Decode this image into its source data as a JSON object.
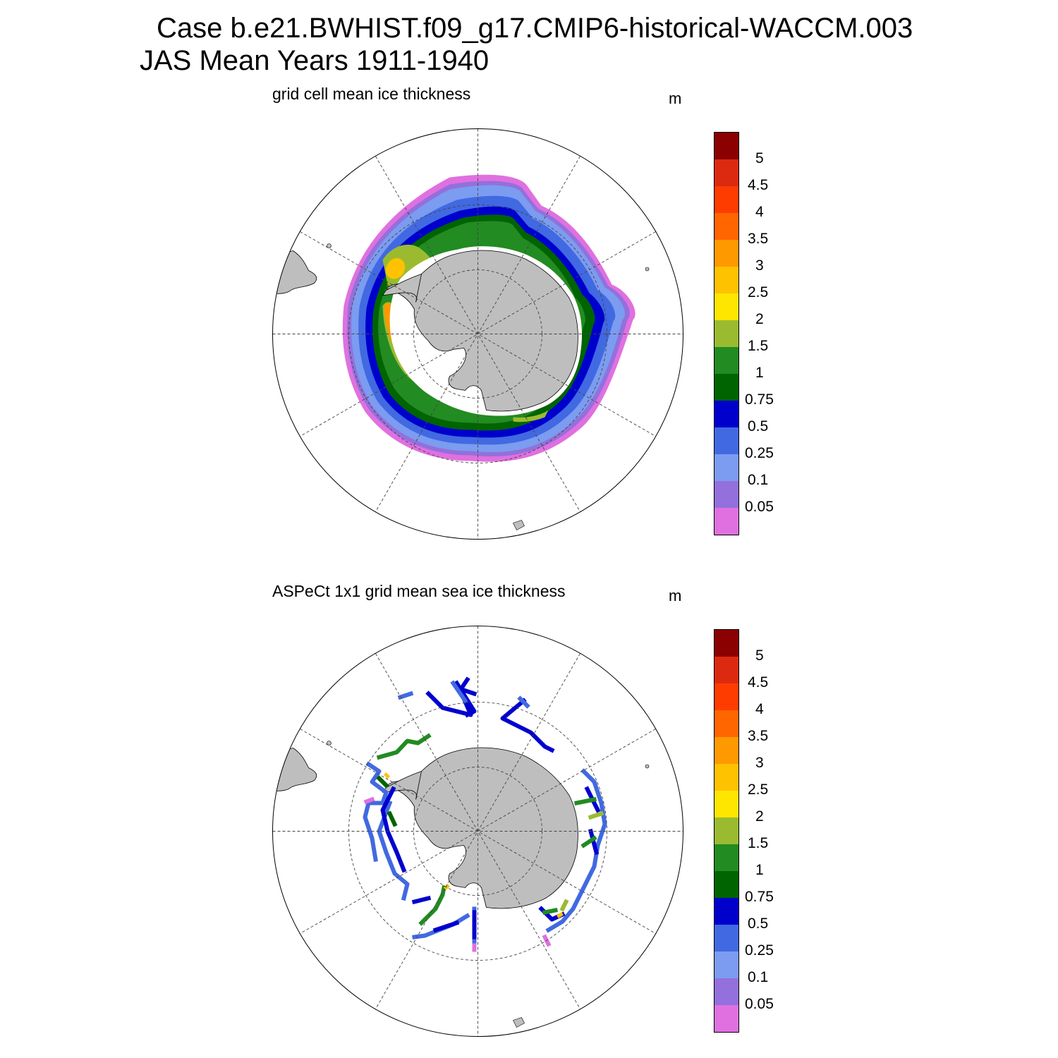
{
  "header": {
    "case_line": "Case b.e21.BWHIST.f09_g17.CMIP6-historical-WACCM.003",
    "period_line": "JAS Mean   Years 1911-1940"
  },
  "panels": [
    {
      "title": "grid cell mean ice thickness",
      "unit": "m"
    },
    {
      "title": "ASPeCt 1x1 grid mean sea ice thickness",
      "unit": "m"
    }
  ],
  "colorbar": {
    "labels": [
      "5",
      "4.5",
      "4",
      "3.5",
      "3",
      "2.5",
      "2",
      "1.5",
      "1",
      "0.75",
      "0.5",
      "0.25",
      "0.1",
      "0.05"
    ],
    "colors": [
      "#8b0000",
      "#dc2a10",
      "#ff3c00",
      "#ff6600",
      "#ff9900",
      "#ffc200",
      "#ffe600",
      "#9abb30",
      "#228b22",
      "#006400",
      "#0000cd",
      "#4169e1",
      "#7b9cf0",
      "#9370db",
      "#e070e0"
    ]
  },
  "map_colors": {
    "land": "#bebebe",
    "grid": "#666666",
    "ice_shelf": "#ffffff"
  }
}
